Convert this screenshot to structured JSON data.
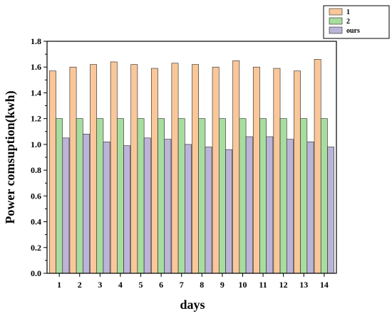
{
  "chart_data": {
    "type": "bar",
    "title": "",
    "xlabel": "days",
    "ylabel": "Power comsuption(kwh)",
    "categories": [
      "1",
      "2",
      "3",
      "4",
      "5",
      "6",
      "7",
      "8",
      "9",
      "10",
      "11",
      "12",
      "13",
      "14"
    ],
    "series": [
      {
        "name": "1",
        "color": "#F9C79A",
        "values": [
          1.57,
          1.6,
          1.62,
          1.64,
          1.62,
          1.59,
          1.63,
          1.62,
          1.6,
          1.65,
          1.6,
          1.59,
          1.57,
          1.66
        ]
      },
      {
        "name": "2",
        "color": "#A8DDA0",
        "values": [
          1.2,
          1.2,
          1.2,
          1.2,
          1.2,
          1.2,
          1.2,
          1.2,
          1.2,
          1.2,
          1.2,
          1.2,
          1.2,
          1.2
        ]
      },
      {
        "name": "ours",
        "color": "#BCB4D8",
        "values": [
          1.05,
          1.08,
          1.02,
          0.99,
          1.05,
          1.04,
          1.0,
          0.98,
          0.96,
          1.06,
          1.06,
          1.04,
          1.02,
          0.98
        ]
      }
    ],
    "ylim": [
      0,
      1.8
    ],
    "yticks": [
      "0.0",
      "0.2",
      "0.4",
      "0.6",
      "0.8",
      "1.0",
      "1.2",
      "1.4",
      "1.6",
      "1.8"
    ],
    "grid": false,
    "legend_position": "top-right outside"
  }
}
